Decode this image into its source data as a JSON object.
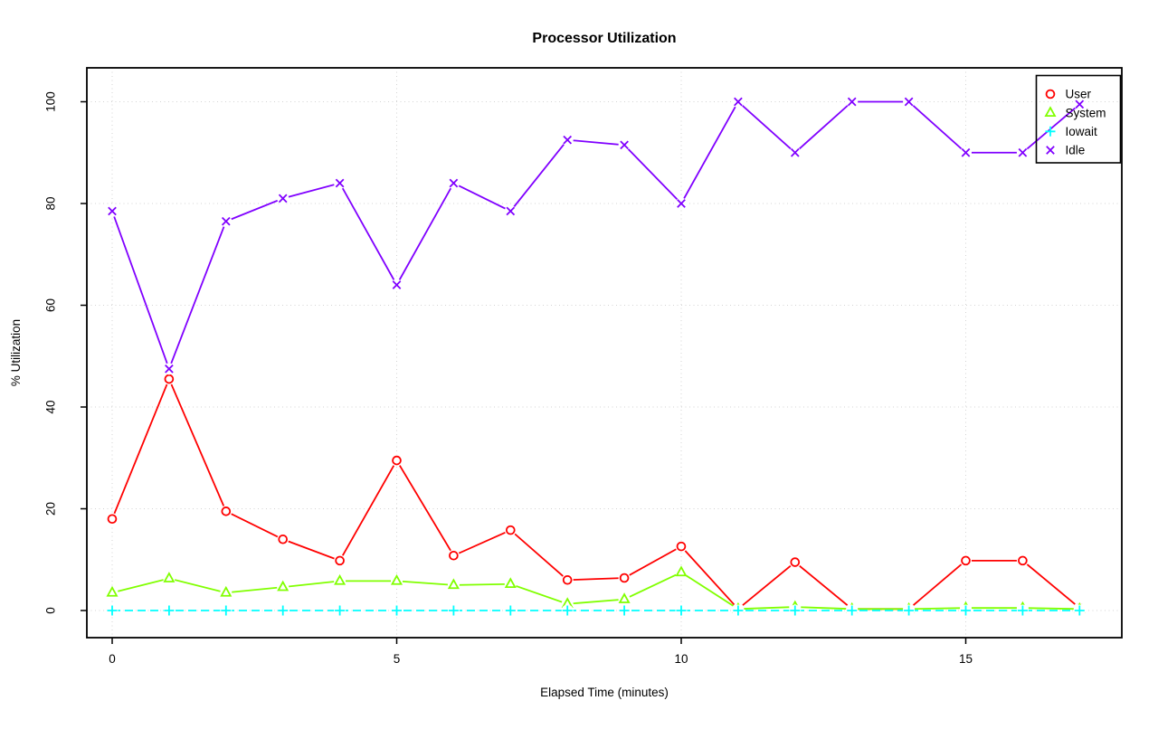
{
  "page": {
    "background": "#ffffff"
  },
  "chart_data": {
    "type": "line",
    "title": "Processor Utilization",
    "xlabel": "Elapsed Time (minutes)",
    "ylabel": "% Utilization",
    "x": [
      0,
      1,
      2,
      3,
      4,
      5,
      6,
      7,
      8,
      9,
      10,
      11,
      12,
      13,
      14,
      15,
      16,
      17
    ],
    "xticks": [
      0,
      5,
      10,
      15
    ],
    "yticks": [
      0,
      20,
      40,
      60,
      80,
      100
    ],
    "xlim": [
      0,
      17
    ],
    "ylim": [
      0,
      100
    ],
    "grid": true,
    "grid_color": "#d3d3d3",
    "axis_color": "#000000",
    "legend_position": "top-right",
    "legend_transparent": true,
    "series": [
      {
        "name": "User",
        "color": "#ff0000",
        "marker": "circle",
        "linestyle": "solid",
        "values": [
          18,
          45.5,
          19.5,
          14,
          9.8,
          29.5,
          10.8,
          15.8,
          6,
          6.4,
          12.6,
          0.3,
          9.5,
          0.3,
          0.3,
          9.8,
          9.8,
          0.5
        ]
      },
      {
        "name": "System",
        "color": "#80ff00",
        "marker": "triangle",
        "linestyle": "solid",
        "values": [
          3.5,
          6.3,
          3.5,
          4.6,
          5.8,
          5.8,
          5,
          5.2,
          1.3,
          2.2,
          7.5,
          0.3,
          0.7,
          0.3,
          0.3,
          0.5,
          0.5,
          0.3
        ]
      },
      {
        "name": "Iowait",
        "color": "#00ffff",
        "marker": "plus",
        "linestyle": "dashed",
        "values": [
          0,
          0,
          0,
          0,
          0,
          0,
          0,
          0,
          0,
          0,
          0,
          0,
          0,
          0,
          0,
          0,
          0,
          0
        ]
      },
      {
        "name": "Idle",
        "color": "#8000ff",
        "marker": "x",
        "linestyle": "solid",
        "values": [
          78.5,
          47.5,
          76.5,
          81,
          84,
          64,
          84,
          78.5,
          92.5,
          91.5,
          80,
          100,
          90,
          100,
          100,
          90,
          90,
          99.5
        ]
      }
    ]
  }
}
